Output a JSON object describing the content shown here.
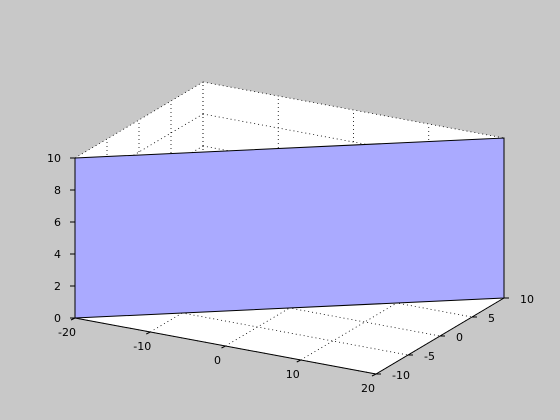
{
  "figure": {
    "background": "#c8c8c8",
    "axes_background": "#ffffff"
  },
  "chart_data": {
    "type": "surface3d",
    "title": "",
    "xlabel": "",
    "ylabel": "",
    "zlabel": "",
    "grid": true,
    "grid_style": "dotted",
    "xlim": [
      -20,
      20
    ],
    "ylim": [
      -10,
      10
    ],
    "zlim": [
      0,
      10
    ],
    "x_ticks": [
      -20,
      -10,
      0,
      10,
      20
    ],
    "x_tick_labels": [
      "-20",
      "-10",
      "0",
      "10",
      "20"
    ],
    "y_ticks": [
      -10,
      -5,
      0,
      5,
      10
    ],
    "y_tick_labels": [
      "-10",
      "-5",
      "0",
      "5",
      "10"
    ],
    "z_ticks": [
      0,
      2,
      4,
      6,
      8,
      10
    ],
    "z_tick_labels": [
      "0",
      "2",
      "4",
      "6",
      "8",
      "10"
    ],
    "surface": {
      "description": "vertical plane from (x=-20, y=-10) to (x=20, y=10), z from 0 to 10",
      "vertices": [
        {
          "x": -20,
          "y": -10,
          "z": 0
        },
        {
          "x": 20,
          "y": 10,
          "z": 0
        },
        {
          "x": 20,
          "y": 10,
          "z": 10
        },
        {
          "x": -20,
          "y": -10,
          "z": 10
        }
      ],
      "face_color": "#aaaaff",
      "edge_color": "#000000"
    }
  }
}
